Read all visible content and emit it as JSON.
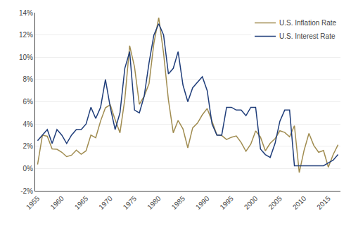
{
  "chart_data": {
    "type": "line",
    "x": [
      1955,
      1956,
      1957,
      1958,
      1959,
      1960,
      1961,
      1962,
      1963,
      1964,
      1965,
      1966,
      1967,
      1968,
      1969,
      1970,
      1971,
      1972,
      1973,
      1974,
      1975,
      1976,
      1977,
      1978,
      1979,
      1980,
      1981,
      1982,
      1983,
      1984,
      1985,
      1986,
      1987,
      1988,
      1989,
      1990,
      1991,
      1992,
      1993,
      1994,
      1995,
      1996,
      1997,
      1998,
      1999,
      2000,
      2001,
      2002,
      2003,
      2004,
      2005,
      2006,
      2007,
      2008,
      2009,
      2010,
      2011,
      2012,
      2013,
      2014,
      2015,
      2016,
      2017
    ],
    "series": [
      {
        "name": "U.S. Inflation Rate",
        "color": "#a08c50",
        "values": [
          0.37,
          2.99,
          2.9,
          1.76,
          1.73,
          1.46,
          1.07,
          1.2,
          1.65,
          1.28,
          1.59,
          3.01,
          2.77,
          4.27,
          5.46,
          5.72,
          4.38,
          3.21,
          6.22,
          11.04,
          9.14,
          5.77,
          6.5,
          7.63,
          11.25,
          13.55,
          10.35,
          6.16,
          3.21,
          4.32,
          3.56,
          1.86,
          3.65,
          4.08,
          4.83,
          5.39,
          4.25,
          3.03,
          2.96,
          2.61,
          2.81,
          2.93,
          2.34,
          1.55,
          2.19,
          3.38,
          2.83,
          1.59,
          2.27,
          2.68,
          3.39,
          3.24,
          2.85,
          3.85,
          -0.36,
          1.64,
          3.16,
          2.07,
          1.46,
          1.62,
          0.12,
          1.26,
          2.13
        ]
      },
      {
        "name": "U.S. Interest Rate",
        "color": "#1f3d7a",
        "values": [
          2.5,
          3.0,
          3.5,
          2.25,
          3.5,
          3.0,
          2.25,
          3.0,
          3.5,
          3.5,
          4.0,
          5.5,
          4.5,
          5.5,
          8.0,
          5.5,
          3.5,
          5.0,
          9.0,
          10.5,
          5.25,
          5.0,
          6.5,
          9.5,
          12.0,
          13.0,
          12.0,
          8.5,
          9.0,
          10.5,
          7.5,
          6.0,
          7.25,
          7.75,
          8.25,
          7.0,
          4.0,
          3.0,
          3.0,
          5.5,
          5.5,
          5.25,
          5.25,
          4.75,
          5.5,
          5.5,
          1.75,
          1.25,
          1.0,
          2.25,
          4.25,
          5.25,
          5.25,
          0.25,
          0.25,
          0.25,
          0.25,
          0.25,
          0.25,
          0.25,
          0.5,
          0.75,
          1.25
        ]
      }
    ],
    "xlim": [
      1954.5,
      2017.5
    ],
    "xticks": [
      1955,
      1960,
      1965,
      1970,
      1975,
      1980,
      1985,
      1990,
      1995,
      2000,
      2005,
      2010,
      2015
    ],
    "ylim": [
      -2,
      14
    ],
    "yticks": [
      {
        "value": -2,
        "label": "-2%"
      },
      {
        "value": 0,
        "label": "0%"
      },
      {
        "value": 2,
        "label": "2%"
      },
      {
        "value": 4,
        "label": "4%"
      },
      {
        "value": 6,
        "label": "6%"
      },
      {
        "value": 8,
        "label": "8%"
      },
      {
        "value": 10,
        "label": "10%"
      },
      {
        "value": 12,
        "label": "12%"
      },
      {
        "value": 14,
        "label": "14%"
      }
    ],
    "grid": true,
    "legend": "upper right"
  }
}
